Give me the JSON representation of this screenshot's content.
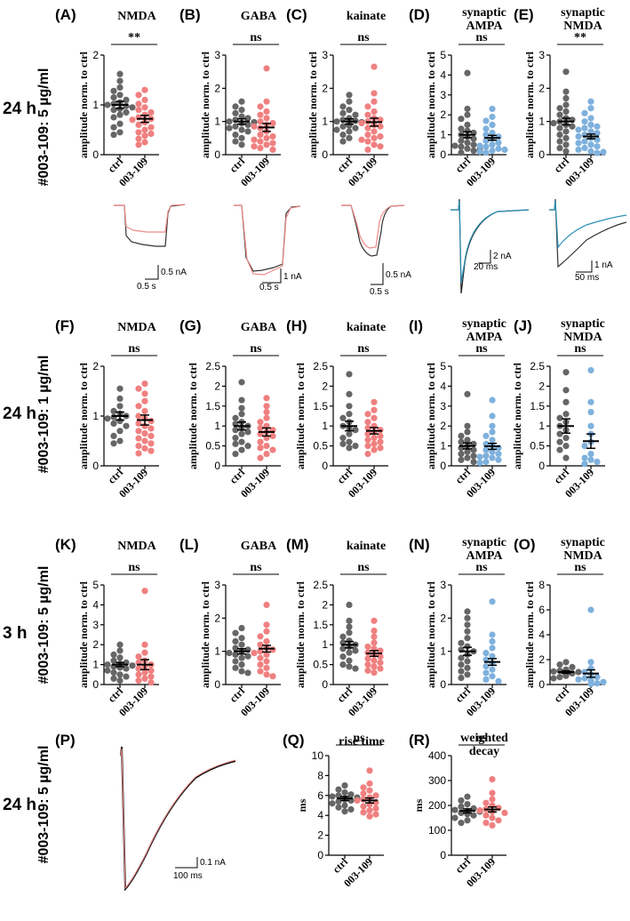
{
  "colors": {
    "ctrl": "#666666",
    "treat_red": "#f08080",
    "treat_blue": "#7fb1dd",
    "trace_red": "#f08a8a",
    "trace_blue": "#2b8fb5"
  },
  "row_labels": [
    {
      "time": "24 h",
      "dose": "#003-109: 5 µg/ml"
    },
    {
      "time": "24 h",
      "dose": "#003-109: 1 µg/ml"
    },
    {
      "time": "3 h",
      "dose": "#003-109: 5 µg/ml"
    },
    {
      "time": "24 h",
      "dose": "#003-109: 5 µg/ml"
    }
  ],
  "scale_bars": [
    "0.5 nA",
    "0.5 s",
    "1 nA",
    "0.5 s",
    "0.5 nA",
    "0.5 s",
    "2 nA",
    "20 ms",
    "1 nA",
    "50 ms",
    "0.1 nA",
    "100 ms"
  ],
  "chart_data": [
    {
      "panel": "(A)",
      "title": [
        "NMDA"
      ],
      "type": "scatter",
      "ylabel": "amplitude norm. to ctrl",
      "ylim": [
        0,
        2
      ],
      "yticks": [
        0,
        1,
        2
      ],
      "categories": [
        "ctrl",
        "003-109"
      ],
      "means": [
        1.0,
        0.72
      ],
      "sem": [
        0.07,
        0.07
      ],
      "significance": "**",
      "color": "red",
      "ctrl": [
        1.62,
        1.48,
        1.35,
        1.28,
        1.2,
        1.15,
        1.1,
        1.05,
        1.02,
        1.0,
        0.98,
        0.95,
        0.92,
        0.9,
        0.85,
        0.8,
        0.75,
        0.62,
        0.55,
        0.45,
        0.4
      ],
      "treat": [
        1.3,
        1.2,
        1.1,
        1.02,
        0.95,
        0.9,
        0.85,
        0.8,
        0.75,
        0.72,
        0.7,
        0.65,
        0.6,
        0.55,
        0.5,
        0.45,
        0.42,
        0.38,
        0.32,
        0.25,
        0.2
      ]
    },
    {
      "panel": "(B)",
      "title": [
        "GABA"
      ],
      "type": "scatter",
      "ylabel": "amplitude norm. to ctrl",
      "ylim": [
        0,
        3
      ],
      "yticks": [
        0,
        1,
        2,
        3
      ],
      "categories": [
        "ctrl",
        "003-109"
      ],
      "means": [
        1.0,
        0.82
      ],
      "sem": [
        0.08,
        0.12
      ],
      "significance": "ns",
      "color": "red",
      "ctrl": [
        1.6,
        1.45,
        1.35,
        1.25,
        1.15,
        1.1,
        1.05,
        1.0,
        0.98,
        0.95,
        0.9,
        0.85,
        0.8,
        0.75,
        0.7,
        0.6,
        0.5,
        0.4,
        0.3
      ],
      "treat": [
        2.6,
        1.6,
        1.45,
        1.3,
        1.2,
        1.1,
        1.0,
        0.95,
        0.9,
        0.85,
        0.8,
        0.7,
        0.6,
        0.55,
        0.5,
        0.45,
        0.4,
        0.35,
        0.3,
        0.25,
        0.2,
        0.15
      ]
    },
    {
      "panel": "(C)",
      "title": [
        "kainate"
      ],
      "type": "scatter",
      "ylabel": "amplitude norm. to ctrl",
      "ylim": [
        0,
        3
      ],
      "yticks": [
        0,
        1,
        2,
        3
      ],
      "categories": [
        "ctrl",
        "003-109"
      ],
      "means": [
        1.0,
        0.98
      ],
      "sem": [
        0.08,
        0.12
      ],
      "significance": "ns",
      "color": "red",
      "ctrl": [
        1.8,
        1.6,
        1.45,
        1.35,
        1.25,
        1.2,
        1.1,
        1.05,
        1.02,
        1.0,
        0.98,
        0.95,
        0.9,
        0.88,
        0.85,
        0.8,
        0.75,
        0.7,
        0.6,
        0.5,
        0.4
      ],
      "treat": [
        2.65,
        1.85,
        1.6,
        1.45,
        1.3,
        1.2,
        1.1,
        1.05,
        1.0,
        0.95,
        0.9,
        0.85,
        0.8,
        0.7,
        0.6,
        0.55,
        0.5,
        0.45,
        0.4,
        0.3,
        0.25,
        0.15
      ]
    },
    {
      "panel": "(D)",
      "title": [
        "synaptic",
        "AMPA"
      ],
      "type": "scatter",
      "ylabel": "amplitude norm. to ctrl",
      "ylim": [
        0,
        5
      ],
      "yticks": [
        0,
        1,
        2,
        3,
        4,
        5
      ],
      "categories": [
        "ctrl",
        "003-109"
      ],
      "means": [
        1.0,
        0.85
      ],
      "sem": [
        0.15,
        0.12
      ],
      "significance": "ns",
      "color": "blue",
      "ctrl": [
        4.1,
        2.3,
        2.0,
        1.8,
        1.5,
        1.3,
        1.2,
        1.1,
        1.0,
        0.9,
        0.8,
        0.7,
        0.6,
        0.5,
        0.45,
        0.4,
        0.3,
        0.25,
        0.2,
        0.1
      ],
      "treat": [
        2.3,
        1.9,
        1.7,
        1.5,
        1.3,
        1.1,
        1.0,
        0.9,
        0.8,
        0.7,
        0.6,
        0.5,
        0.45,
        0.4,
        0.3,
        0.25,
        0.2,
        0.15,
        0.1
      ]
    },
    {
      "panel": "(E)",
      "title": [
        "synaptic",
        "NMDA"
      ],
      "type": "scatter",
      "ylabel": "amplitude norm. to ctrl",
      "ylim": [
        0,
        3
      ],
      "yticks": [
        0,
        1,
        2,
        3
      ],
      "categories": [
        "ctrl",
        "003-109"
      ],
      "means": [
        1.0,
        0.55
      ],
      "sem": [
        0.1,
        0.07
      ],
      "significance": "**",
      "color": "blue",
      "ctrl": [
        2.5,
        1.9,
        1.7,
        1.5,
        1.4,
        1.3,
        1.2,
        1.1,
        1.05,
        1.0,
        0.95,
        0.9,
        0.85,
        0.8,
        0.7,
        0.6,
        0.5,
        0.4,
        0.3,
        0.2,
        0.1
      ],
      "treat": [
        1.6,
        1.4,
        1.25,
        1.1,
        1.0,
        0.9,
        0.85,
        0.8,
        0.75,
        0.7,
        0.65,
        0.6,
        0.55,
        0.5,
        0.45,
        0.4,
        0.35,
        0.3,
        0.25,
        0.2,
        0.15,
        0.1,
        0.08,
        0.05
      ]
    },
    {
      "panel": "(F)",
      "title": [
        "NMDA"
      ],
      "type": "scatter",
      "ylabel": "amplitude norm. to ctrl",
      "ylim": [
        0,
        2
      ],
      "yticks": [
        0,
        1,
        2
      ],
      "categories": [
        "ctrl",
        "003-109"
      ],
      "means": [
        1.0,
        0.92
      ],
      "sem": [
        0.08,
        0.1
      ],
      "significance": "ns",
      "color": "red",
      "ctrl": [
        1.55,
        1.35,
        1.2,
        1.1,
        1.05,
        1.0,
        0.98,
        0.95,
        0.9,
        0.85,
        0.8,
        0.7,
        0.6,
        0.5,
        0.45
      ],
      "treat": [
        1.65,
        1.55,
        1.45,
        1.3,
        1.2,
        1.1,
        1.0,
        0.95,
        0.9,
        0.85,
        0.8,
        0.75,
        0.7,
        0.65,
        0.6,
        0.55,
        0.5,
        0.45,
        0.4,
        0.35,
        0.3,
        0.25
      ]
    },
    {
      "panel": "(G)",
      "title": [
        "GABA"
      ],
      "type": "scatter",
      "ylabel": "amplitude norm. to ctrl",
      "ylim": [
        0,
        2.5
      ],
      "yticks": [
        0,
        0.5,
        1,
        1.5,
        2,
        2.5
      ],
      "categories": [
        "ctrl",
        "003-109"
      ],
      "means": [
        1.0,
        0.85
      ],
      "sem": [
        0.1,
        0.1
      ],
      "significance": "ns",
      "color": "red",
      "ctrl": [
        2.1,
        1.65,
        1.45,
        1.3,
        1.2,
        1.1,
        1.05,
        1.0,
        0.95,
        0.9,
        0.85,
        0.8,
        0.7,
        0.6,
        0.55,
        0.5,
        0.4,
        0.3
      ],
      "treat": [
        1.7,
        1.5,
        1.35,
        1.2,
        1.1,
        1.0,
        0.95,
        0.9,
        0.85,
        0.8,
        0.75,
        0.7,
        0.6,
        0.5,
        0.45,
        0.4,
        0.3,
        0.2
      ]
    },
    {
      "panel": "(H)",
      "title": [
        "kainate"
      ],
      "type": "scatter",
      "ylabel": "amplitude norm. to ctrl",
      "ylim": [
        0,
        2.5
      ],
      "yticks": [
        0,
        0.5,
        1,
        1.5,
        2,
        2.5
      ],
      "categories": [
        "ctrl",
        "003-109"
      ],
      "means": [
        1.0,
        0.88
      ],
      "sem": [
        0.12,
        0.08
      ],
      "significance": "ns",
      "color": "red",
      "ctrl": [
        2.3,
        1.8,
        1.5,
        1.3,
        1.2,
        1.1,
        1.0,
        0.95,
        0.9,
        0.8,
        0.7,
        0.6,
        0.55,
        0.5,
        0.45
      ],
      "treat": [
        1.6,
        1.4,
        1.3,
        1.2,
        1.1,
        1.0,
        0.95,
        0.9,
        0.85,
        0.8,
        0.75,
        0.7,
        0.65,
        0.6,
        0.55,
        0.5,
        0.45,
        0.4,
        0.3
      ]
    },
    {
      "panel": "(I)",
      "title": [
        "synaptic",
        "AMPA"
      ],
      "type": "scatter",
      "ylabel": "amplitude norm. to ctrl",
      "ylim": [
        0,
        5
      ],
      "yticks": [
        0,
        1,
        2,
        3,
        4,
        5
      ],
      "categories": [
        "ctrl",
        "003-109"
      ],
      "means": [
        1.0,
        0.98
      ],
      "sem": [
        0.15,
        0.15
      ],
      "significance": "ns",
      "color": "blue",
      "ctrl": [
        3.6,
        2.0,
        1.7,
        1.5,
        1.3,
        1.2,
        1.1,
        1.0,
        0.9,
        0.8,
        0.7,
        0.6,
        0.5,
        0.4,
        0.3,
        0.2
      ],
      "treat": [
        3.3,
        2.5,
        2.0,
        1.7,
        1.5,
        1.3,
        1.1,
        1.0,
        0.9,
        0.8,
        0.7,
        0.6,
        0.5,
        0.45,
        0.4,
        0.3,
        0.2,
        0.15
      ]
    },
    {
      "panel": "(J)",
      "title": [
        "synaptic",
        "NMDA"
      ],
      "type": "scatter",
      "ylabel": "amplitude norm. to ctrl",
      "ylim": [
        0,
        2.5
      ],
      "yticks": [
        0,
        0.5,
        1,
        1.5,
        2,
        2.5
      ],
      "categories": [
        "ctrl",
        "003-109"
      ],
      "means": [
        1.0,
        0.62
      ],
      "sem": [
        0.18,
        0.18
      ],
      "significance": "ns",
      "color": "blue",
      "ctrl": [
        2.35,
        1.9,
        1.6,
        1.3,
        1.2,
        1.1,
        1.0,
        0.9,
        0.8,
        0.7,
        0.6,
        0.5,
        0.4,
        0.2
      ],
      "treat": [
        2.4,
        1.6,
        1.35,
        1.0,
        0.8,
        0.6,
        0.5,
        0.3,
        0.2,
        0.15,
        0.1,
        0.05
      ]
    },
    {
      "panel": "(K)",
      "title": [
        "NMDA"
      ],
      "type": "scatter",
      "ylabel": "amplitude norm. to ctrl",
      "ylim": [
        0,
        5
      ],
      "yticks": [
        0,
        1,
        2,
        3,
        4,
        5
      ],
      "categories": [
        "ctrl",
        "003-109"
      ],
      "means": [
        1.0,
        1.0
      ],
      "sem": [
        0.1,
        0.25
      ],
      "significance": "ns",
      "color": "red",
      "ctrl": [
        2.0,
        1.7,
        1.5,
        1.35,
        1.2,
        1.1,
        1.05,
        1.0,
        0.95,
        0.9,
        0.85,
        0.8,
        0.7,
        0.6,
        0.5,
        0.4,
        0.3,
        0.2
      ],
      "treat": [
        4.7,
        2.0,
        1.6,
        1.4,
        1.2,
        1.1,
        1.0,
        0.9,
        0.8,
        0.7,
        0.6,
        0.5,
        0.4,
        0.3,
        0.2,
        0.1
      ]
    },
    {
      "panel": "(L)",
      "title": [
        "GABA"
      ],
      "type": "scatter",
      "ylabel": "amplitude norm. to ctrl",
      "ylim": [
        0,
        3
      ],
      "yticks": [
        0,
        1,
        2,
        3
      ],
      "categories": [
        "ctrl",
        "003-109"
      ],
      "means": [
        1.0,
        1.08
      ],
      "sem": [
        0.08,
        0.1
      ],
      "significance": "ns",
      "color": "red",
      "ctrl": [
        1.7,
        1.55,
        1.4,
        1.3,
        1.2,
        1.1,
        1.05,
        1.0,
        0.95,
        0.9,
        0.85,
        0.8,
        0.7,
        0.6,
        0.5,
        0.4,
        0.35
      ],
      "treat": [
        2.4,
        1.8,
        1.6,
        1.45,
        1.3,
        1.2,
        1.1,
        1.05,
        1.0,
        0.95,
        0.9,
        0.8,
        0.7,
        0.6,
        0.5,
        0.4,
        0.3,
        0.25
      ]
    },
    {
      "panel": "(M)",
      "title": [
        "kainate"
      ],
      "type": "scatter",
      "ylabel": "amplitude norm. to ctrl",
      "ylim": [
        0,
        2.5
      ],
      "yticks": [
        0,
        0.5,
        1,
        1.5,
        2,
        2.5
      ],
      "categories": [
        "ctrl",
        "003-109"
      ],
      "means": [
        1.0,
        0.78
      ],
      "sem": [
        0.08,
        0.07
      ],
      "significance": "ns",
      "color": "red",
      "ctrl": [
        2.0,
        1.6,
        1.45,
        1.3,
        1.2,
        1.1,
        1.05,
        1.0,
        0.95,
        0.9,
        0.85,
        0.8,
        0.7,
        0.6,
        0.5,
        0.45,
        0.4
      ],
      "treat": [
        1.6,
        1.35,
        1.2,
        1.05,
        0.95,
        0.9,
        0.85,
        0.8,
        0.75,
        0.7,
        0.65,
        0.6,
        0.55,
        0.5,
        0.45,
        0.4,
        0.35,
        0.3
      ]
    },
    {
      "panel": "(N)",
      "title": [
        "synaptic",
        "AMPA"
      ],
      "type": "scatter",
      "ylabel": "amplitude norm. to ctrl",
      "ylim": [
        0,
        3
      ],
      "yticks": [
        0,
        1,
        2,
        3
      ],
      "categories": [
        "ctrl",
        "003-109"
      ],
      "means": [
        1.0,
        0.68
      ],
      "sem": [
        0.12,
        0.1
      ],
      "significance": "ns",
      "color": "blue",
      "ctrl": [
        2.2,
        2.0,
        1.8,
        1.6,
        1.4,
        1.25,
        1.15,
        1.05,
        1.0,
        0.9,
        0.8,
        0.7,
        0.6,
        0.5,
        0.4,
        0.3,
        0.2
      ],
      "treat": [
        2.5,
        1.5,
        1.3,
        1.1,
        0.95,
        0.85,
        0.75,
        0.65,
        0.55,
        0.45,
        0.35,
        0.25,
        0.15,
        0.1
      ]
    },
    {
      "panel": "(O)",
      "title": [
        "synaptic",
        "NMDA"
      ],
      "type": "scatter",
      "ylabel": "amplitude norm. to ctrl",
      "ylim": [
        0,
        8
      ],
      "yticks": [
        0,
        2,
        4,
        6,
        8
      ],
      "categories": [
        "ctrl",
        "003-109"
      ],
      "means": [
        1.0,
        0.88
      ],
      "sem": [
        0.1,
        0.3
      ],
      "significance": "ns",
      "color": "blue",
      "ctrl": [
        1.8,
        1.6,
        1.4,
        1.2,
        1.1,
        1.05,
        1.0,
        0.95,
        0.9,
        0.85,
        0.8,
        0.7,
        0.6,
        0.5
      ],
      "treat": [
        6.0,
        1.8,
        1.3,
        1.0,
        0.8,
        0.6,
        0.5,
        0.4,
        0.3,
        0.2,
        0.1,
        0.05
      ]
    },
    {
      "panel": "(Q)",
      "title": [
        "rise time"
      ],
      "type": "scatter",
      "ylabel": "ms",
      "ylim": [
        0,
        10
      ],
      "yticks": [
        0,
        2,
        4,
        6,
        8,
        10
      ],
      "categories": [
        "ctrl",
        "003-109"
      ],
      "means": [
        5.7,
        5.5
      ],
      "sem": [
        0.2,
        0.25
      ],
      "significance": "ns",
      "color": "red",
      "ctrl": [
        7.0,
        6.6,
        6.3,
        6.1,
        6.0,
        5.9,
        5.8,
        5.7,
        5.6,
        5.5,
        5.4,
        5.2,
        5.0,
        4.8,
        4.6,
        4.4
      ],
      "treat": [
        8.5,
        7.2,
        6.8,
        6.5,
        6.2,
        6.0,
        5.8,
        5.6,
        5.5,
        5.3,
        5.1,
        4.9,
        4.7,
        4.5,
        4.3,
        4.1,
        3.9
      ]
    },
    {
      "panel": "(R)",
      "title": [
        "weighted",
        "decay"
      ],
      "type": "scatter",
      "ylabel": "ms",
      "ylim": [
        0,
        400
      ],
      "yticks": [
        0,
        100,
        200,
        300,
        400
      ],
      "categories": [
        "ctrl",
        "003-109"
      ],
      "means": [
        178,
        184
      ],
      "sem": [
        8,
        10
      ],
      "significance": "ns",
      "color": "red",
      "ctrl": [
        235,
        220,
        205,
        195,
        188,
        182,
        178,
        175,
        170,
        165,
        160,
        150,
        140,
        130
      ],
      "treat": [
        305,
        250,
        225,
        210,
        200,
        190,
        185,
        180,
        175,
        170,
        160,
        150,
        140,
        130,
        120
      ]
    }
  ]
}
